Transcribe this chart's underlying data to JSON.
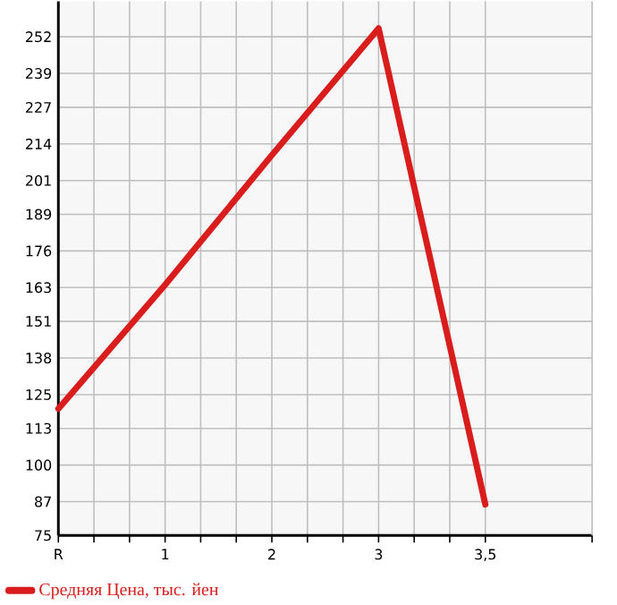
{
  "chart_data": {
    "type": "line",
    "categories": [
      "R",
      "1",
      "2",
      "3",
      "3,5"
    ],
    "series": [
      {
        "name": "Средняя Цена, тыс. йен",
        "color": "#d91c1c",
        "values": [
          120,
          164,
          210,
          255,
          86
        ]
      }
    ],
    "ylim": [
      75,
      264.6
    ],
    "yticks": [
      75,
      87,
      100,
      113,
      125,
      138,
      151,
      163,
      176,
      189,
      201,
      214,
      227,
      239,
      252
    ],
    "grid": true,
    "legend": "bottom left",
    "marker": "none",
    "line_style": "solid"
  }
}
